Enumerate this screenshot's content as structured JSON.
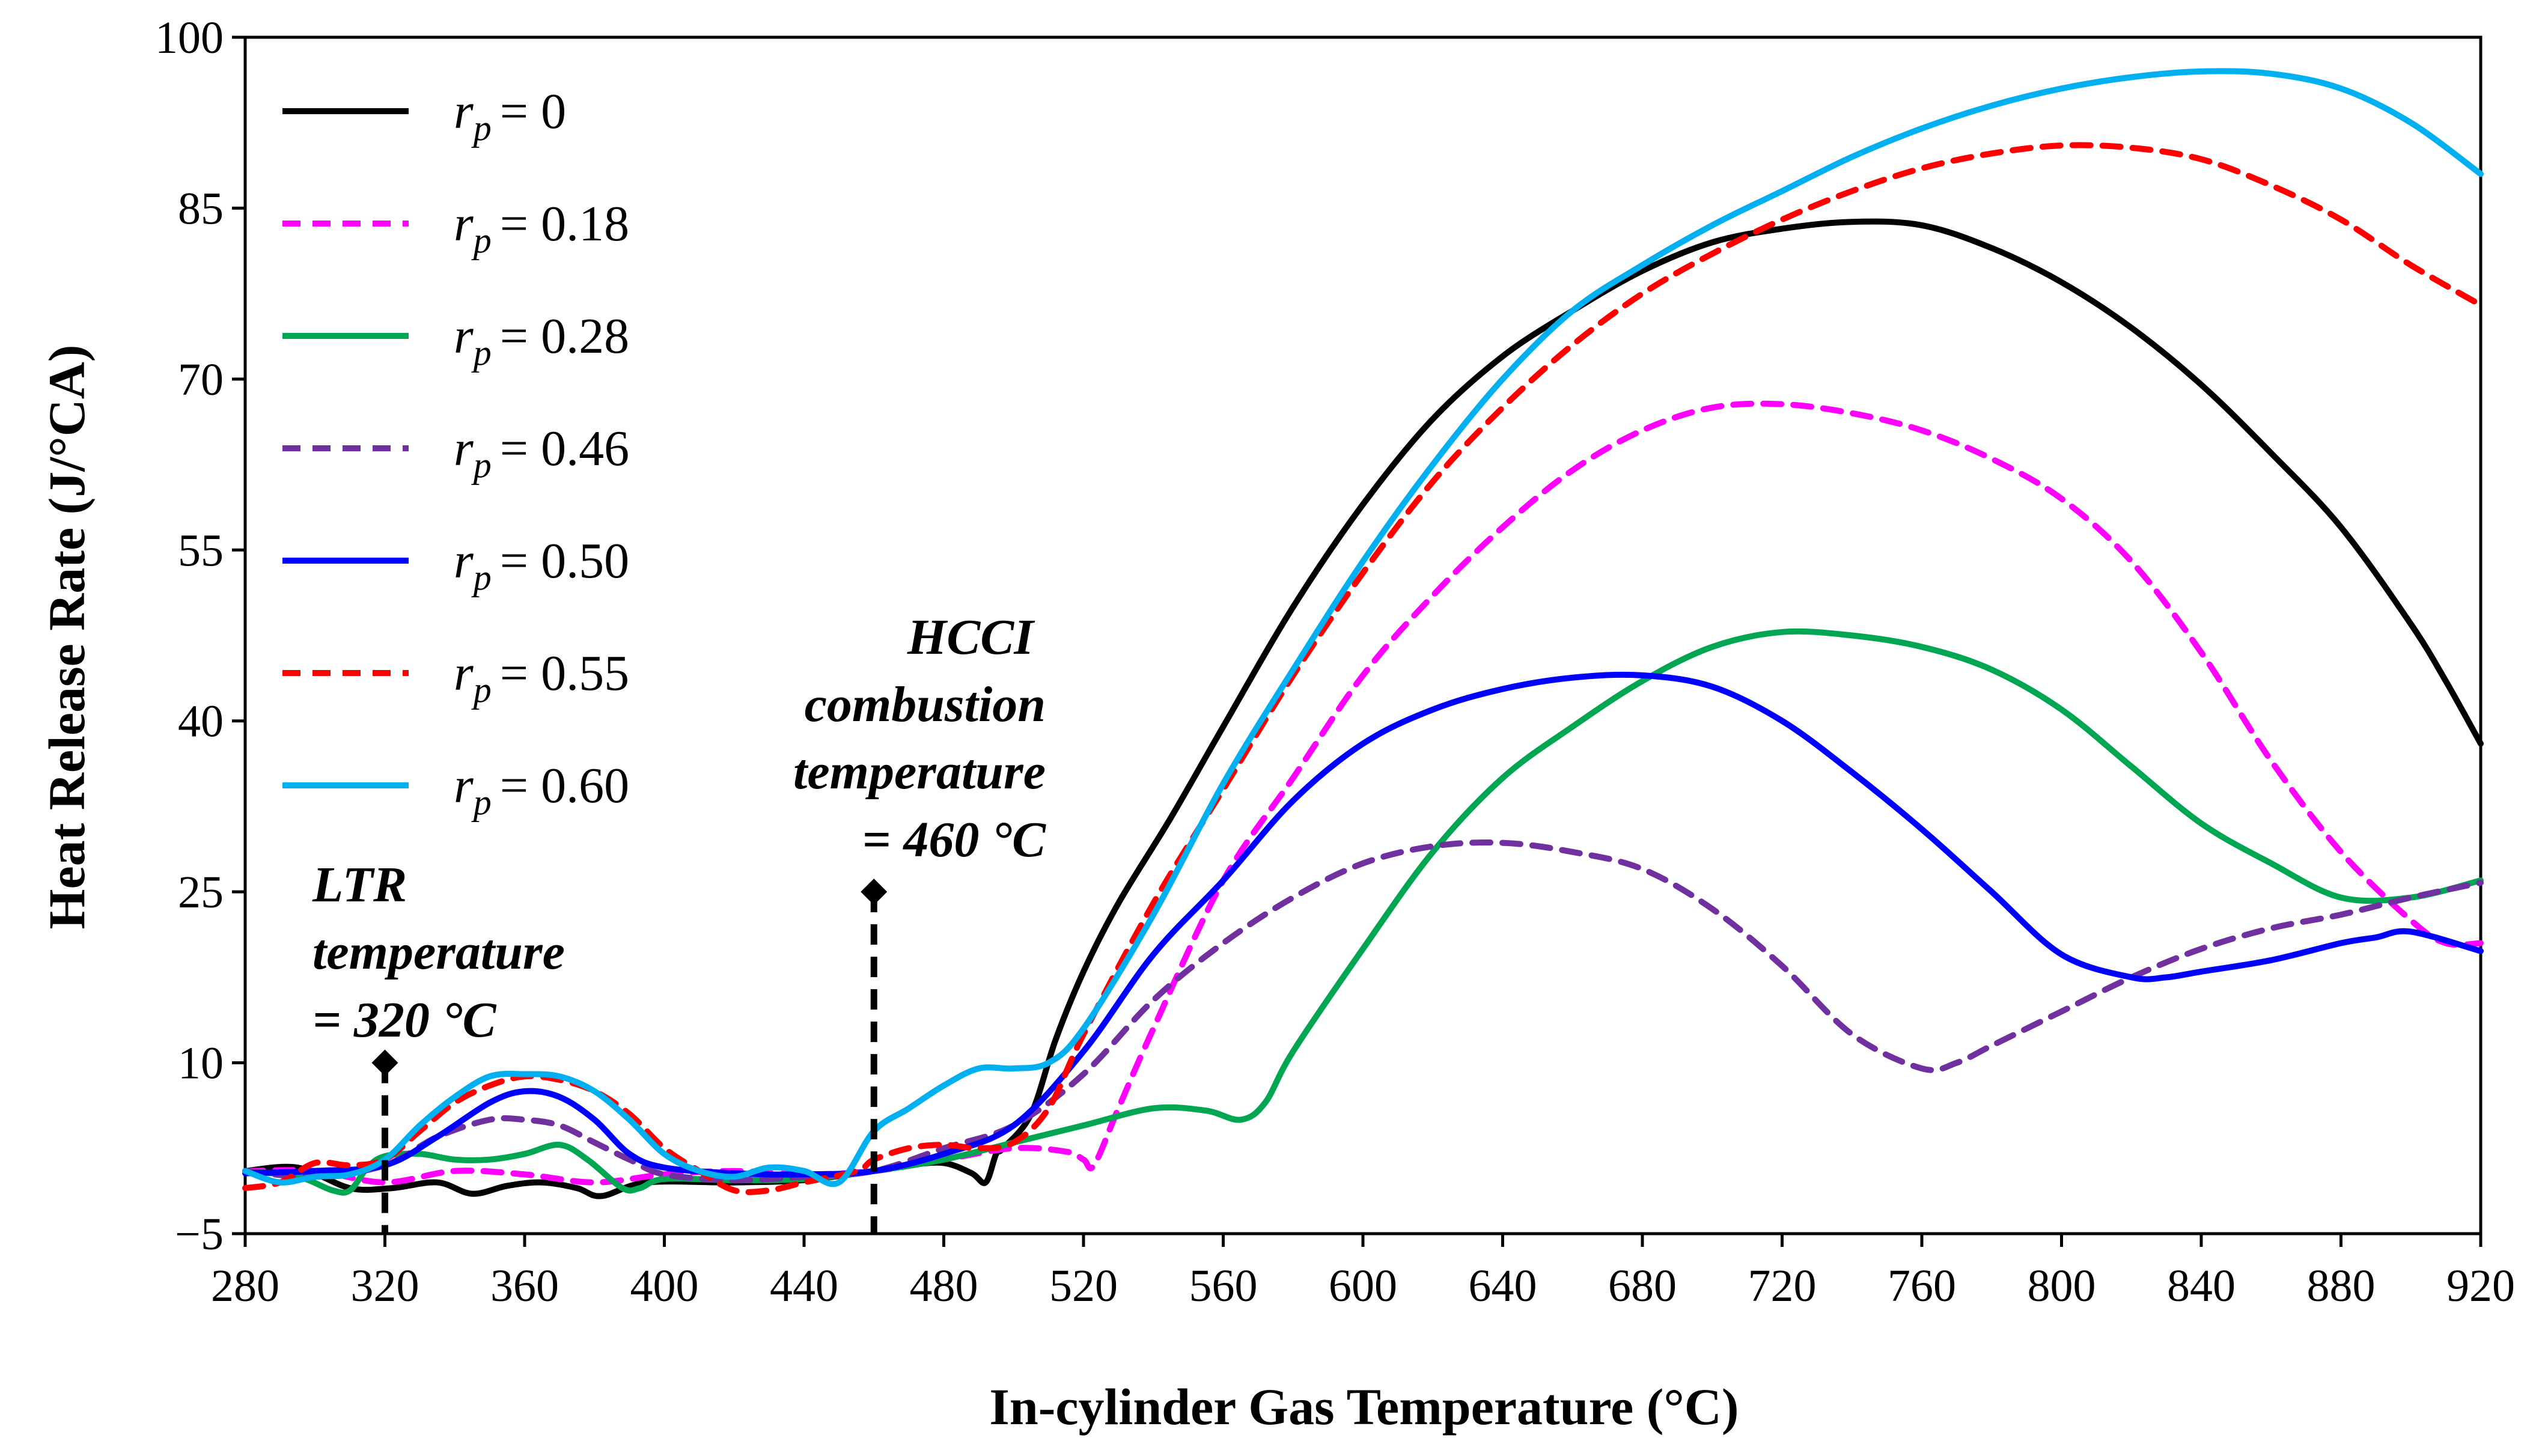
{
  "chart_data": {
    "type": "line",
    "title": "",
    "xlabel": "In-cylinder Gas Temperature (°C)",
    "ylabel": "Heat Release Rate (J/°CA)",
    "xlim": [
      280,
      920
    ],
    "ylim": [
      -5,
      100
    ],
    "xticks": [
      280,
      320,
      360,
      400,
      440,
      480,
      520,
      560,
      600,
      640,
      680,
      720,
      760,
      800,
      840,
      880,
      920
    ],
    "yticks": [
      -5,
      10,
      25,
      40,
      55,
      70,
      85,
      100
    ],
    "ytick_labels": [
      "−5",
      "10",
      "25",
      "40",
      "55",
      "70",
      "85",
      "100"
    ],
    "legend_position": "top-left",
    "series": [
      {
        "name": "r_p = 0",
        "label_var": "r",
        "label_sub": "p",
        "label_value": "= 0",
        "color": "#000000",
        "dash": "solid",
        "x": [
          280,
          295,
          310,
          322,
          335,
          345,
          355,
          365,
          375,
          382,
          395,
          420,
          440,
          460,
          470,
          480,
          488,
          492,
          495,
          497,
          505,
          512,
          520,
          530,
          545,
          560,
          580,
          600,
          620,
          640,
          660,
          680,
          700,
          720,
          740,
          760,
          780,
          800,
          820,
          840,
          860,
          880,
          900,
          910,
          920
        ],
        "y": [
          0.5,
          0.8,
          -1.0,
          -1.0,
          -0.5,
          -1.5,
          -0.8,
          -0.5,
          -1.0,
          -1.7,
          -0.5,
          -0.5,
          -0.3,
          0.5,
          1.0,
          1.2,
          0.3,
          -0.5,
          2.0,
          2.5,
          5.5,
          12.0,
          18.0,
          24.0,
          31.5,
          39.5,
          50.0,
          59.0,
          66.5,
          72.0,
          76.0,
          79.5,
          82.0,
          83.2,
          83.8,
          83.5,
          81.5,
          78.5,
          74.5,
          69.5,
          63.5,
          57.0,
          48.5,
          43.5,
          38.0
        ]
      },
      {
        "name": "r_p = 0.18",
        "label_var": "r",
        "label_sub": "p",
        "label_value": "= 0.18",
        "color": "#ff00ff",
        "dash": "dashed",
        "x": [
          280,
          300,
          320,
          340,
          360,
          380,
          400,
          420,
          440,
          460,
          480,
          500,
          515,
          520,
          523,
          530,
          540,
          560,
          580,
          600,
          620,
          640,
          660,
          680,
          700,
          720,
          740,
          760,
          780,
          800,
          820,
          840,
          860,
          880,
          900,
          910,
          920
        ],
        "y": [
          0.5,
          0.5,
          -0.5,
          0.5,
          0.2,
          -0.5,
          0.2,
          0.5,
          0.2,
          0.5,
          1.5,
          2.5,
          2.2,
          1.5,
          1.0,
          6.0,
          13.0,
          26.0,
          35.0,
          44.0,
          51.0,
          57.0,
          62.0,
          65.5,
          67.5,
          67.8,
          67.0,
          65.5,
          63.0,
          59.5,
          54.0,
          46.0,
          36.5,
          28.5,
          22.5,
          20.5,
          20.5
        ]
      },
      {
        "name": "r_p = 0.28",
        "label_var": "r",
        "label_sub": "p",
        "label_value": "= 0.28",
        "color": "#00a651",
        "dash": "solid",
        "x": [
          280,
          295,
          305,
          310,
          315,
          320,
          330,
          340,
          350,
          360,
          370,
          378,
          388,
          393,
          400,
          420,
          440,
          460,
          480,
          500,
          520,
          540,
          555,
          565,
          572,
          580,
          600,
          620,
          640,
          660,
          680,
          700,
          720,
          740,
          760,
          780,
          800,
          820,
          840,
          860,
          880,
          900,
          920
        ],
        "y": [
          0.5,
          0.0,
          -1.2,
          -1.2,
          0.8,
          1.8,
          2.0,
          1.5,
          1.5,
          2.0,
          2.8,
          1.5,
          -1.0,
          -1.0,
          -0.2,
          -0.3,
          -0.2,
          0.5,
          1.5,
          3.0,
          4.5,
          6.0,
          5.8,
          5.0,
          6.5,
          11.0,
          20.0,
          28.5,
          35.0,
          39.5,
          43.5,
          46.5,
          47.8,
          47.5,
          46.5,
          44.5,
          41.0,
          36.0,
          31.0,
          27.5,
          24.5,
          24.5,
          26.0
        ]
      },
      {
        "name": "r_p = 0.46",
        "label_var": "r",
        "label_sub": "p",
        "label_value": "= 0.46",
        "color": "#7030a0",
        "dash": "dashed",
        "x": [
          280,
          300,
          320,
          335,
          350,
          360,
          370,
          380,
          390,
          400,
          420,
          440,
          460,
          480,
          500,
          520,
          540,
          560,
          580,
          600,
          620,
          640,
          660,
          680,
          700,
          720,
          740,
          760,
          770,
          780,
          800,
          820,
          840,
          860,
          880,
          900,
          920
        ],
        "y": [
          0.5,
          0.0,
          1.0,
          3.5,
          5.0,
          5.0,
          4.5,
          3.0,
          1.5,
          0.2,
          -0.3,
          0.0,
          0.5,
          2.5,
          4.5,
          9.0,
          15.5,
          20.5,
          24.5,
          27.5,
          29.0,
          29.3,
          28.5,
          27.0,
          23.5,
          18.5,
          12.5,
          9.5,
          10.0,
          11.5,
          14.5,
          17.5,
          20.0,
          21.8,
          23.0,
          24.5,
          25.8
        ]
      },
      {
        "name": "r_p = 0.50",
        "label_var": "r",
        "label_sub": "p",
        "label_value": "= 0.50",
        "color": "#0000ff",
        "dash": "solid",
        "x": [
          280,
          300,
          320,
          335,
          350,
          360,
          370,
          380,
          390,
          400,
          420,
          440,
          460,
          480,
          500,
          520,
          540,
          560,
          580,
          600,
          620,
          640,
          660,
          680,
          700,
          720,
          740,
          760,
          780,
          800,
          820,
          830,
          840,
          860,
          880,
          890,
          900,
          920
        ],
        "y": [
          0.3,
          0.5,
          1.0,
          3.5,
          6.5,
          7.5,
          7.0,
          5.0,
          2.0,
          0.8,
          0.3,
          0.2,
          0.5,
          2.0,
          4.5,
          11.0,
          19.5,
          26.0,
          33.0,
          38.0,
          41.0,
          42.8,
          43.8,
          44.0,
          43.0,
          40.0,
          35.5,
          30.5,
          25.0,
          19.5,
          17.5,
          17.5,
          18.0,
          19.0,
          20.5,
          21.0,
          21.5,
          19.8
        ]
      },
      {
        "name": "r_p = 0.55",
        "label_var": "r",
        "label_sub": "p",
        "label_value": "= 0.55",
        "color": "#ff0000",
        "dash": "dashed",
        "x": [
          280,
          290,
          300,
          310,
          320,
          330,
          340,
          350,
          360,
          370,
          380,
          390,
          400,
          410,
          420,
          430,
          440,
          455,
          460,
          470,
          480,
          490,
          500,
          510,
          520,
          540,
          560,
          580,
          600,
          620,
          640,
          660,
          680,
          700,
          720,
          740,
          760,
          780,
          800,
          820,
          840,
          860,
          880,
          900,
          920
        ],
        "y": [
          -1.0,
          -0.5,
          1.2,
          1.0,
          1.5,
          4.0,
          6.5,
          8.0,
          8.8,
          8.5,
          7.5,
          5.5,
          2.5,
          0.5,
          -1.2,
          -1.2,
          -0.5,
          0.5,
          1.5,
          2.5,
          2.8,
          2.5,
          3.0,
          6.0,
          12.5,
          24.0,
          34.0,
          44.0,
          53.0,
          61.0,
          67.5,
          73.0,
          77.5,
          81.0,
          84.0,
          86.5,
          88.5,
          89.8,
          90.5,
          90.3,
          89.3,
          87.0,
          84.0,
          80.0,
          76.5
        ]
      },
      {
        "name": "r_p = 0.60",
        "label_var": "r",
        "label_sub": "p",
        "label_value": "= 0.60",
        "color": "#00b0f0",
        "dash": "solid",
        "x": [
          280,
          290,
          300,
          310,
          320,
          330,
          340,
          350,
          360,
          370,
          380,
          390,
          400,
          410,
          420,
          430,
          440,
          450,
          460,
          470,
          480,
          490,
          500,
          510,
          520,
          540,
          560,
          580,
          600,
          620,
          640,
          660,
          680,
          700,
          720,
          740,
          760,
          780,
          800,
          820,
          840,
          860,
          880,
          900,
          920
        ],
        "y": [
          0.5,
          -0.5,
          0.0,
          0.2,
          1.5,
          4.5,
          7.0,
          8.8,
          9.0,
          8.8,
          7.5,
          5.0,
          2.0,
          0.5,
          0.0,
          0.8,
          0.5,
          -0.5,
          4.0,
          6.0,
          8.0,
          9.5,
          9.5,
          10.0,
          13.0,
          23.0,
          34.5,
          44.5,
          54.0,
          62.5,
          70.0,
          76.0,
          80.0,
          83.5,
          86.5,
          89.5,
          92.0,
          94.0,
          95.5,
          96.5,
          97.0,
          96.8,
          95.5,
          92.5,
          88.0
        ]
      }
    ],
    "annotations": [
      {
        "id": "ltr",
        "lines": [
          "LTR",
          "temperature",
          "= 320 °C"
        ],
        "marker_x": 320,
        "marker_y_top": 10,
        "marker_y_bottom": -5
      },
      {
        "id": "hcci",
        "lines": [
          "HCCI",
          "combustion",
          "temperature",
          "= 460 °C"
        ],
        "marker_x": 460,
        "marker_y_top": 25,
        "marker_y_bottom": -5
      }
    ]
  }
}
